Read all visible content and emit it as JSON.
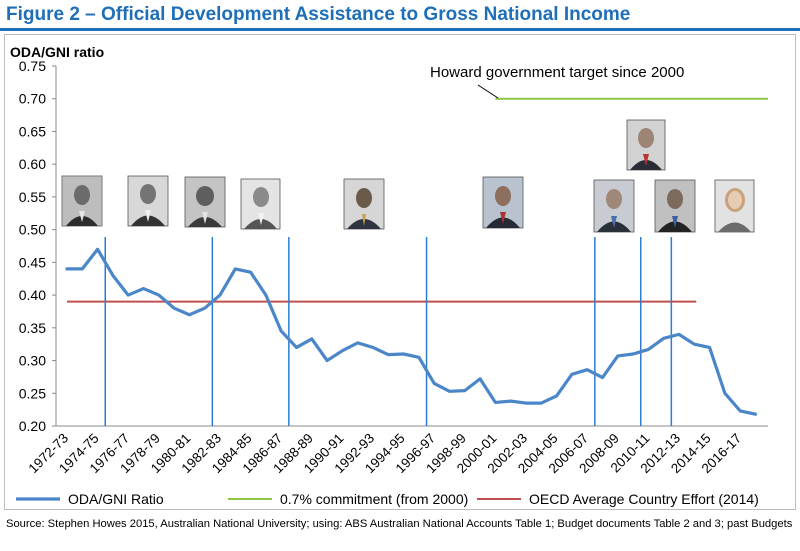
{
  "figure": {
    "title": "Figure 2 – Official Development Assistance to Gross National Income",
    "source": "Source: Stephen Howes 2015, Australian National University; using: ABS Australian National Accounts Table 1; Budget documents Table 2 and 3; past Budgets"
  },
  "chart_data": {
    "type": "line",
    "ylabel": "ODA/GNI ratio",
    "ylim": [
      0.2,
      0.75
    ],
    "yticks": [
      "0.75",
      "0.70",
      "0.65",
      "0.60",
      "0.55",
      "0.50",
      "0.45",
      "0.40",
      "0.35",
      "0.30",
      "0.25",
      "0.20"
    ],
    "ytick_values": [
      0.75,
      0.7,
      0.65,
      0.6,
      0.55,
      0.5,
      0.45,
      0.4,
      0.35,
      0.3,
      0.25,
      0.2
    ],
    "x": [
      "1972-73",
      "1973-74",
      "1974-75",
      "1975-76",
      "1976-77",
      "1977-78",
      "1978-79",
      "1979-80",
      "1980-81",
      "1981-82",
      "1982-83",
      "1983-84",
      "1984-85",
      "1985-86",
      "1986-87",
      "1987-88",
      "1988-89",
      "1989-90",
      "1990-91",
      "1991-92",
      "1992-93",
      "1993-94",
      "1994-95",
      "1995-96",
      "1996-97",
      "1997-98",
      "1998-99",
      "1999-00",
      "2000-01",
      "2001-02",
      "2002-03",
      "2003-04",
      "2004-05",
      "2005-06",
      "2006-07",
      "2007-08",
      "2008-09",
      "2009-10",
      "2010-11",
      "2011-12",
      "2012-13",
      "2013-14",
      "2014-15",
      "2015-16",
      "2016-17",
      "2017-18"
    ],
    "xtick_labels": [
      "1972-73",
      "1974-75",
      "1976-77",
      "1978-79",
      "1980-81",
      "1982-83",
      "1984-85",
      "1986-87",
      "1988-89",
      "1990-91",
      "1992-93",
      "1994-95",
      "1996-97",
      "1998-99",
      "2000-01",
      "2002-03",
      "2004-05",
      "2006-07",
      "2008-09",
      "2010-11",
      "2012-13",
      "2014-15",
      "2016-17"
    ],
    "series": [
      {
        "name": "ODA/GNI Ratio",
        "color": "#4a86c8",
        "values": [
          0.44,
          0.44,
          0.47,
          0.43,
          0.4,
          0.41,
          0.4,
          0.38,
          0.37,
          0.38,
          0.4,
          0.44,
          0.435,
          0.4,
          0.345,
          0.32,
          0.333,
          0.3,
          0.315,
          0.327,
          0.32,
          0.309,
          0.31,
          0.305,
          0.265,
          0.253,
          0.254,
          0.272,
          0.236,
          0.238,
          0.235,
          0.235,
          0.246,
          0.279,
          0.286,
          0.274,
          0.307,
          0.31,
          0.317,
          0.334,
          0.34,
          0.325,
          0.32,
          0.25,
          0.223,
          0.218
        ]
      },
      {
        "name": "0.7% commitment (from 2000)",
        "color": "#8ec641",
        "from": "2000-01",
        "to": "2017-18",
        "value": 0.7
      },
      {
        "name": "OECD Average Country Effort (2014)",
        "color": "#c0504d",
        "from": "1972-73",
        "to": "2013-14",
        "value": 0.39
      }
    ],
    "government_changes": [
      "1975-76",
      "1982-83",
      "1987-88",
      "1996-97",
      "2007-08",
      "2010-11",
      "2012-13"
    ],
    "vline_color": "#2e7bd1",
    "annotation": "Howard government target since 2000",
    "prime_minister_photos": [
      "whitlam",
      "fraser",
      "hawke",
      "keating",
      "howard",
      "rudd",
      "gillard",
      "abbott"
    ],
    "legend_position": "bottom"
  }
}
